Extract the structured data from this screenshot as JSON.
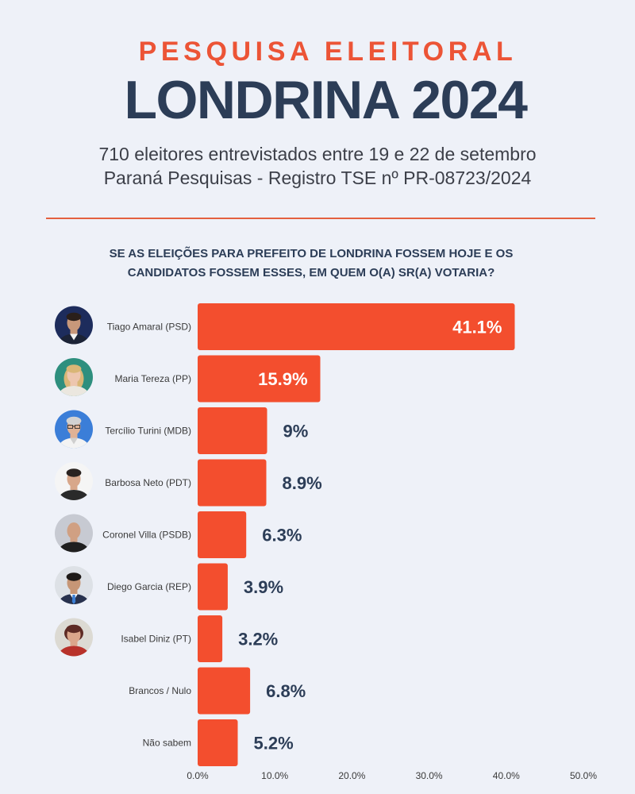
{
  "header": {
    "kicker": "PESQUISA ELEITORAL",
    "title": "LONDRINA 2024",
    "subtitle_lines": [
      "710 eleitores entrevistados entre 19 e 22 de setembro",
      "Paraná Pesquisas - Registro TSE nº PR-08723/2024"
    ]
  },
  "colors": {
    "background": "#eef1f8",
    "kicker": "#ec5436",
    "navy": "#2c3d57",
    "text": "#3c3f48",
    "divider": "#e4603f"
  },
  "chart_data": {
    "type": "bar",
    "orientation": "horizontal",
    "title_lines": [
      "SE AS ELEIÇÕES PARA PREFEITO DE LONDRINA FOSSEM HOJE E OS",
      "CANDIDATOS FOSSEM ESSES, EM QUEM O(A) SR(A) VOTARIA?"
    ],
    "categories": [
      "Tiago Amaral (PSD)",
      "Maria Tereza (PP)",
      "Tercílio Turini (MDB)",
      "Barbosa Neto (PDT)",
      "Coronel Villa (PSDB)",
      "Diego Garcia (REP)",
      "Isabel Diniz (PT)",
      "Brancos / Nulo",
      "Não sabem"
    ],
    "values": [
      41.1,
      15.9,
      9,
      8.9,
      6.3,
      3.9,
      3.2,
      6.8,
      5.2
    ],
    "value_labels": [
      "41.1%",
      "15.9%",
      "9%",
      "8.9%",
      "6.3%",
      "3.9%",
      "3.2%",
      "6.8%",
      "5.2%"
    ],
    "unit": "%",
    "xlim": [
      0,
      50
    ],
    "x_tick_values": [
      0,
      10,
      20,
      30,
      40,
      50
    ],
    "x_tick_labels": [
      "0.0%",
      "10.0%",
      "20.0%",
      "30.0%",
      "40.0%",
      "50.0%"
    ],
    "grid": false,
    "legend": "none",
    "bar_color": "#f34e2e"
  }
}
